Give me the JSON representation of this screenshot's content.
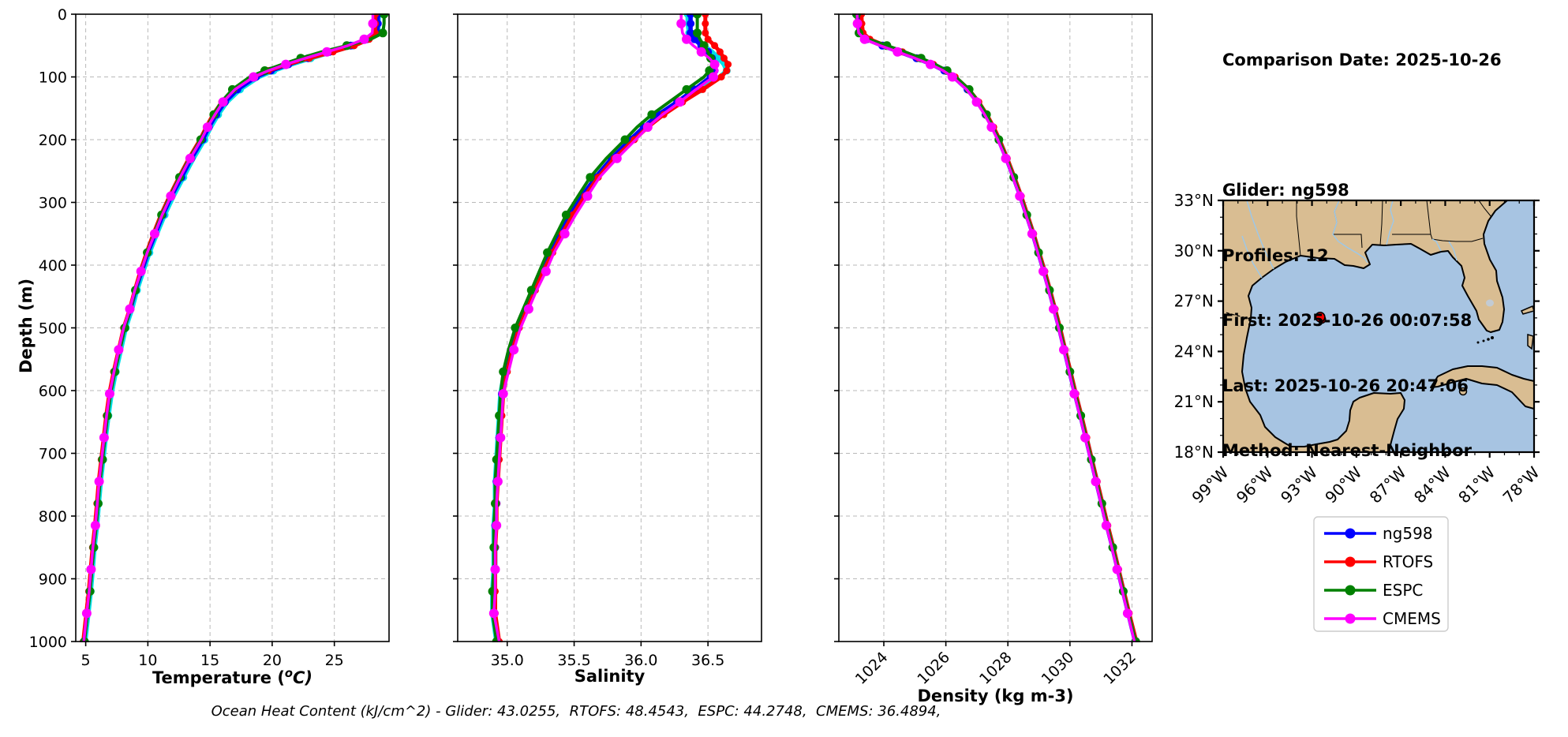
{
  "info_panel": {
    "lines": [
      "Comparison Date: 2025-10-26",
      "",
      "Glider: ng598",
      "Profiles: 12",
      "First: 2025-10-26 00:07:58",
      "Last: 2025-10-26 20:47:06",
      "Method: Nearest-Neighbor"
    ]
  },
  "footer": {
    "ohc_line": "Ocean Heat Content (kJ/cm^2) - Glider: 43.0255,  RTOFS: 48.4543,  ESPC: 44.2748,  CMEMS: 36.4894,"
  },
  "ocean_heat_content": {
    "unit": "kJ/cm^2",
    "glider": 43.0255,
    "rtofs": 48.4543,
    "espc": 44.2748,
    "cmems": 36.4894
  },
  "legend": {
    "entries": [
      {
        "label": "ng598",
        "color": "#0000ff"
      },
      {
        "label": "RTOFS",
        "color": "#ff0000"
      },
      {
        "label": "ESPC",
        "color": "#008000"
      },
      {
        "label": "CMEMS",
        "color": "#ff00ff"
      }
    ]
  },
  "map": {
    "extent": {
      "lon_west": -99,
      "lon_east": -78,
      "lat_south": 18,
      "lat_north": 33
    },
    "lat_tick_labels": [
      "33°N",
      "30°N",
      "27°N",
      "24°N",
      "21°N",
      "18°N"
    ],
    "lat_tick_values": [
      33,
      30,
      27,
      24,
      21,
      18
    ],
    "lon_tick_labels": [
      "99°W",
      "96°W",
      "93°W",
      "90°W",
      "87°W",
      "84°W",
      "81°W",
      "78°W"
    ],
    "lon_tick_values": [
      -99,
      -96,
      -93,
      -90,
      -87,
      -84,
      -81,
      -78
    ],
    "glider_marker": {
      "lon": -92.45,
      "lat": 26.05,
      "color": "#ff0000"
    },
    "land_color": "#d9bd92",
    "ocean_color": "#a7c4e2",
    "river_color": "#9cc8ea"
  },
  "chart_data": [
    {
      "type": "line",
      "xlabel": {
        "pre": "Temperature (",
        "sup": "o",
        "post": "C)"
      },
      "ylabel": "Depth (m)",
      "xlim": [
        4.2,
        29.4
      ],
      "ylim": [
        1000,
        0
      ],
      "grid": true,
      "xticks": [
        5,
        10,
        15,
        20,
        25
      ],
      "xtick_labels": [
        "5",
        "10",
        "15",
        "20",
        "25"
      ],
      "yticks": [
        0,
        100,
        200,
        300,
        400,
        500,
        600,
        700,
        800,
        900,
        1000
      ],
      "rotate_xticks": false,
      "depths": [
        0,
        15,
        30,
        40,
        50,
        60,
        70,
        80,
        90,
        100,
        120,
        140,
        160,
        180,
        200,
        230,
        260,
        290,
        320,
        350,
        380,
        410,
        440,
        470,
        500,
        535,
        570,
        605,
        640,
        675,
        710,
        745,
        780,
        815,
        850,
        885,
        920,
        955,
        1000
      ],
      "series": [
        {
          "name": "",
          "legend": false,
          "color": "#00e0e6",
          "values": [
            28.55,
            28.55,
            28.5,
            27.75,
            26.5,
            24.8,
            23.1,
            21.5,
            20.1,
            18.9,
            17.4,
            16.35,
            15.65,
            15.05,
            14.55,
            13.65,
            12.85,
            12.05,
            11.35,
            10.72,
            10.12,
            9.62,
            9.12,
            8.72,
            8.22,
            7.82,
            7.42,
            7.07,
            6.82,
            6.6,
            6.4,
            6.2,
            6.05,
            5.9,
            5.7,
            5.55,
            5.4,
            5.2,
            4.95
          ]
        },
        {
          "name": "ng598",
          "legend": true,
          "color": "#0000ff",
          "values": [
            28.5,
            28.5,
            28.45,
            27.6,
            26.3,
            24.6,
            22.9,
            21.3,
            19.9,
            18.7,
            17.2,
            16.2,
            15.5,
            14.9,
            14.4,
            13.5,
            12.7,
            11.9,
            11.2,
            10.6,
            10.0,
            9.5,
            9.0,
            8.6,
            8.1,
            7.7,
            7.3,
            6.95,
            6.7,
            6.5,
            6.3,
            6.1,
            5.95,
            5.8,
            5.6,
            5.45,
            5.3,
            5.1,
            4.85
          ]
        },
        {
          "name": "RTOFS",
          "legend": true,
          "color": "#ff0000",
          "values": [
            28.3,
            28.3,
            28.28,
            27.8,
            26.6,
            24.9,
            23.0,
            21.2,
            19.7,
            18.4,
            16.9,
            15.95,
            15.25,
            14.7,
            14.2,
            13.3,
            12.5,
            11.75,
            11.05,
            10.45,
            9.9,
            9.4,
            8.95,
            8.55,
            8.05,
            7.65,
            7.25,
            6.9,
            6.65,
            6.45,
            6.25,
            6.05,
            5.9,
            5.75,
            5.55,
            5.4,
            5.25,
            5.05,
            4.8
          ]
        },
        {
          "name": "ESPC",
          "legend": true,
          "color": "#008000",
          "values": [
            29.0,
            29.0,
            28.9,
            27.9,
            26.0,
            24.0,
            22.3,
            20.8,
            19.4,
            18.2,
            16.8,
            15.9,
            15.3,
            14.75,
            14.25,
            13.35,
            12.55,
            11.8,
            11.1,
            10.5,
            9.95,
            9.45,
            9.0,
            8.6,
            8.15,
            7.75,
            7.35,
            7.0,
            6.75,
            6.55,
            6.35,
            6.15,
            6.0,
            5.85,
            5.65,
            5.5,
            5.35,
            5.15,
            4.9
          ]
        },
        {
          "name": "CMEMS",
          "legend": true,
          "color": "#ff00ff",
          "values": [
            28.1,
            28.1,
            28.05,
            27.4,
            26.1,
            24.4,
            22.7,
            21.1,
            19.7,
            18.5,
            17.0,
            16.05,
            15.4,
            14.8,
            14.3,
            13.4,
            12.6,
            11.85,
            11.15,
            10.55,
            9.95,
            9.45,
            8.95,
            8.55,
            8.05,
            7.65,
            7.28,
            6.93,
            6.68,
            6.48,
            6.28,
            6.08,
            5.93,
            5.78,
            5.58,
            5.43,
            5.28,
            5.08,
            4.85
          ]
        }
      ]
    },
    {
      "type": "line",
      "xlabel": {
        "pre": "Salinity",
        "sup": "",
        "post": ""
      },
      "ylabel": "",
      "xlim": [
        34.63,
        36.9
      ],
      "ylim": [
        1000,
        0
      ],
      "grid": true,
      "xticks": [
        35.0,
        35.5,
        36.0,
        36.5
      ],
      "xtick_labels": [
        "35.0",
        "35.5",
        "36.0",
        "36.5"
      ],
      "yticks": [
        0,
        100,
        200,
        300,
        400,
        500,
        600,
        700,
        800,
        900,
        1000
      ],
      "rotate_xticks": false,
      "depths": [
        0,
        15,
        30,
        40,
        50,
        60,
        70,
        80,
        90,
        100,
        120,
        140,
        160,
        180,
        200,
        230,
        260,
        290,
        320,
        350,
        380,
        410,
        440,
        470,
        500,
        535,
        570,
        605,
        640,
        675,
        710,
        745,
        780,
        815,
        850,
        885,
        920,
        955,
        1000
      ],
      "series": [
        {
          "name": "",
          "legend": false,
          "color": "#00e0e6",
          "values": [
            36.35,
            36.35,
            36.36,
            36.41,
            36.47,
            36.53,
            36.58,
            36.62,
            36.64,
            36.59,
            36.44,
            36.29,
            36.14,
            36.03,
            35.93,
            35.79,
            35.67,
            35.57,
            35.48,
            35.4,
            35.33,
            35.26,
            35.2,
            35.14,
            35.08,
            35.03,
            34.98,
            34.95,
            34.94,
            34.93,
            34.92,
            34.91,
            34.91,
            34.9,
            34.9,
            34.9,
            34.89,
            34.89,
            34.92
          ]
        },
        {
          "name": "ng598",
          "legend": true,
          "color": "#0000ff",
          "values": [
            36.37,
            36.37,
            36.37,
            36.4,
            36.45,
            36.5,
            36.53,
            36.55,
            36.55,
            36.52,
            36.4,
            36.27,
            36.13,
            36.02,
            35.92,
            35.78,
            35.66,
            35.56,
            35.47,
            35.39,
            35.32,
            35.26,
            35.2,
            35.14,
            35.08,
            35.03,
            34.99,
            34.96,
            34.95,
            34.94,
            34.93,
            34.92,
            34.92,
            34.91,
            34.91,
            34.91,
            34.9,
            34.9,
            34.93
          ]
        },
        {
          "name": "RTOFS",
          "legend": true,
          "color": "#ff0000",
          "values": [
            36.48,
            36.48,
            36.48,
            36.5,
            36.55,
            36.59,
            36.62,
            36.65,
            36.64,
            36.6,
            36.46,
            36.31,
            36.17,
            36.05,
            35.95,
            35.8,
            35.68,
            35.58,
            35.49,
            35.41,
            35.34,
            35.27,
            35.21,
            35.15,
            35.09,
            35.04,
            35.0,
            34.97,
            34.96,
            34.95,
            34.94,
            34.93,
            34.92,
            34.92,
            34.91,
            34.91,
            34.91,
            34.91,
            34.94
          ]
        },
        {
          "name": "ESPC",
          "legend": true,
          "color": "#008000",
          "values": [
            36.42,
            36.42,
            36.42,
            36.44,
            36.47,
            36.5,
            36.52,
            36.53,
            36.51,
            36.47,
            36.34,
            36.21,
            36.08,
            35.97,
            35.88,
            35.74,
            35.62,
            35.53,
            35.44,
            35.37,
            35.3,
            35.24,
            35.18,
            35.12,
            35.06,
            35.01,
            34.97,
            34.95,
            34.94,
            34.93,
            34.92,
            34.91,
            34.91,
            34.9,
            34.9,
            34.9,
            34.89,
            34.89,
            34.92
          ]
        },
        {
          "name": "CMEMS",
          "legend": true,
          "color": "#ff00ff",
          "values": [
            36.3,
            36.3,
            36.31,
            36.34,
            36.39,
            36.45,
            36.51,
            36.55,
            36.57,
            36.54,
            36.41,
            36.29,
            36.16,
            36.05,
            35.96,
            35.82,
            35.69,
            35.6,
            35.51,
            35.43,
            35.35,
            35.29,
            35.22,
            35.16,
            35.1,
            35.05,
            35.01,
            34.97,
            34.96,
            34.95,
            34.94,
            34.93,
            34.92,
            34.92,
            34.91,
            34.91,
            34.91,
            34.9,
            34.94
          ]
        }
      ]
    },
    {
      "type": "line",
      "xlabel": {
        "pre": "Density (kg m-3)",
        "sup": "",
        "post": ""
      },
      "ylabel": "",
      "xlim": [
        1022.55,
        1032.65
      ],
      "ylim": [
        1000,
        0
      ],
      "grid": true,
      "xticks": [
        1024,
        1026,
        1028,
        1030,
        1032
      ],
      "xtick_labels": [
        "1024",
        "1026",
        "1028",
        "1030",
        "1032"
      ],
      "yticks": [
        0,
        100,
        200,
        300,
        400,
        500,
        600,
        700,
        800,
        900,
        1000
      ],
      "rotate_xticks": true,
      "depths": [
        0,
        15,
        30,
        40,
        50,
        60,
        70,
        80,
        90,
        100,
        120,
        140,
        160,
        180,
        200,
        230,
        260,
        290,
        320,
        350,
        380,
        410,
        440,
        470,
        500,
        535,
        570,
        605,
        640,
        675,
        710,
        745,
        780,
        815,
        850,
        885,
        920,
        955,
        1000
      ],
      "series": [
        {
          "name": "",
          "legend": false,
          "color": "#00e0e6",
          "values": [
            1023.22,
            1023.23,
            1023.28,
            1023.48,
            1023.98,
            1024.53,
            1025.08,
            1025.58,
            1025.98,
            1026.28,
            1026.72,
            1027.04,
            1027.3,
            1027.52,
            1027.72,
            1027.97,
            1028.2,
            1028.42,
            1028.62,
            1028.82,
            1029.0,
            1029.18,
            1029.35,
            1029.51,
            1029.67,
            1029.84,
            1030.01,
            1030.18,
            1030.36,
            1030.53,
            1030.7,
            1030.87,
            1031.04,
            1031.21,
            1031.39,
            1031.56,
            1031.73,
            1031.9,
            1032.12
          ]
        },
        {
          "name": "ng598",
          "legend": true,
          "color": "#0000ff",
          "values": [
            1023.2,
            1023.21,
            1023.26,
            1023.45,
            1023.95,
            1024.5,
            1025.05,
            1025.55,
            1025.95,
            1026.25,
            1026.7,
            1027.02,
            1027.28,
            1027.5,
            1027.7,
            1027.95,
            1028.18,
            1028.4,
            1028.6,
            1028.8,
            1028.98,
            1029.16,
            1029.33,
            1029.49,
            1029.65,
            1029.82,
            1029.99,
            1030.16,
            1030.34,
            1030.51,
            1030.68,
            1030.85,
            1031.02,
            1031.19,
            1031.37,
            1031.54,
            1031.71,
            1031.88,
            1032.1
          ]
        },
        {
          "name": "RTOFS",
          "legend": true,
          "color": "#ff0000",
          "values": [
            1023.28,
            1023.29,
            1023.33,
            1023.55,
            1024.05,
            1024.6,
            1025.12,
            1025.6,
            1026.0,
            1026.3,
            1026.74,
            1027.06,
            1027.32,
            1027.54,
            1027.73,
            1027.98,
            1028.21,
            1028.43,
            1028.63,
            1028.83,
            1029.01,
            1029.19,
            1029.36,
            1029.52,
            1029.68,
            1029.85,
            1030.02,
            1030.19,
            1030.37,
            1030.54,
            1030.71,
            1030.88,
            1031.05,
            1031.22,
            1031.4,
            1031.57,
            1031.74,
            1031.91,
            1032.14
          ]
        },
        {
          "name": "ESPC",
          "legend": true,
          "color": "#008000",
          "values": [
            1023.12,
            1023.13,
            1023.2,
            1023.5,
            1024.1,
            1024.68,
            1025.2,
            1025.66,
            1026.04,
            1026.32,
            1026.75,
            1027.06,
            1027.31,
            1027.52,
            1027.71,
            1027.96,
            1028.19,
            1028.41,
            1028.61,
            1028.81,
            1028.99,
            1029.17,
            1029.34,
            1029.5,
            1029.66,
            1029.83,
            1030.0,
            1030.17,
            1030.35,
            1030.52,
            1030.69,
            1030.86,
            1031.03,
            1031.2,
            1031.38,
            1031.55,
            1031.72,
            1031.89,
            1032.12
          ]
        },
        {
          "name": "CMEMS",
          "legend": true,
          "color": "#ff00ff",
          "values": [
            1023.14,
            1023.15,
            1023.19,
            1023.38,
            1023.88,
            1024.44,
            1025.0,
            1025.5,
            1025.91,
            1026.21,
            1026.67,
            1026.99,
            1027.25,
            1027.47,
            1027.67,
            1027.93,
            1028.16,
            1028.38,
            1028.58,
            1028.78,
            1028.96,
            1029.14,
            1029.31,
            1029.47,
            1029.63,
            1029.8,
            1029.97,
            1030.14,
            1030.32,
            1030.49,
            1030.66,
            1030.83,
            1031.0,
            1031.17,
            1031.35,
            1031.52,
            1031.69,
            1031.86,
            1032.08
          ]
        }
      ]
    }
  ]
}
